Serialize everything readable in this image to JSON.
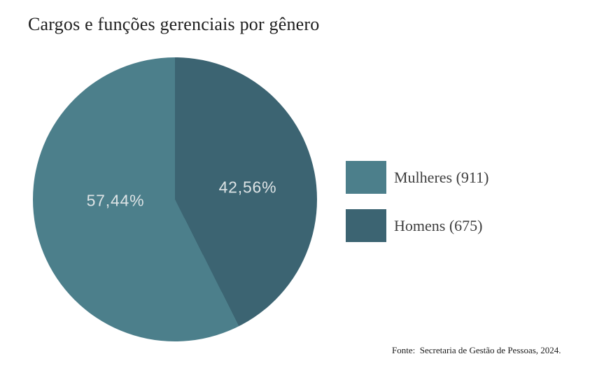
{
  "title": "Cargos e funções gerenciais por gênero",
  "source": "Fonte:  Secretaria de Gestão de Pessoas, 2024.",
  "legend": {
    "items": [
      {
        "label": "Mulheres (911)",
        "color": "#4C7F8B"
      },
      {
        "label": "Homens (675)",
        "color": "#3C6472"
      }
    ]
  },
  "chart_data": {
    "type": "pie",
    "title": "Cargos e funções gerenciais por gênero",
    "labels": [
      "Mulheres",
      "Homens"
    ],
    "values": [
      911,
      675
    ],
    "percentages": [
      57.44,
      42.56
    ],
    "percent_labels": [
      "57,44%",
      "42,56%"
    ],
    "colors": [
      "#4C7F8B",
      "#3C6472"
    ],
    "start_angle_deg": 0,
    "direction": "counterclockwise",
    "legend_position": "right",
    "legend_entries": [
      "Mulheres (911)",
      "Homens (675)"
    ],
    "source": "Fonte:  Secretaria de Gestão de Pessoas, 2024."
  }
}
